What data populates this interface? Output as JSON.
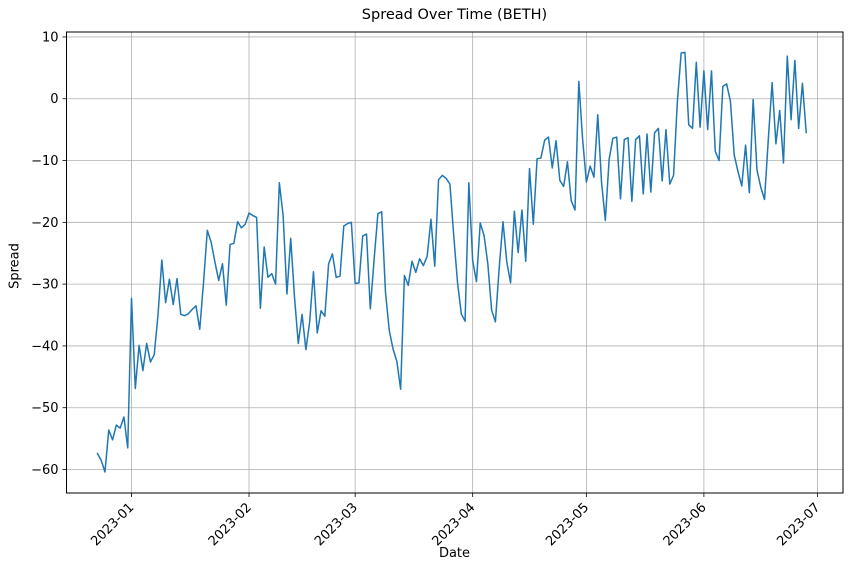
{
  "chart_data": {
    "type": "line",
    "title": "Spread Over Time (BETH)",
    "xlabel": "Date",
    "ylabel": "Spread",
    "series_name": "Spread",
    "line_color": "#1f77b4",
    "grid": true,
    "grid_color": "#b0b0b0",
    "legend": "none",
    "x_start_date": "2022-12-23",
    "x_frequency": "daily",
    "x_tick_labels": [
      "2023-01",
      "2023-02",
      "2023-03",
      "2023-04",
      "2023-05",
      "2023-06",
      "2023-07"
    ],
    "x_tick_indices": [
      9,
      40,
      68,
      99,
      129,
      160,
      190
    ],
    "x_range_indices": [
      -8.15,
      196.7
    ],
    "y_ticks": [
      10,
      0,
      -10,
      -20,
      -30,
      -40,
      -50,
      -60
    ],
    "y_tick_labels": [
      "10",
      "0",
      "−10",
      "−20",
      "−30",
      "−40",
      "−50",
      "−60"
    ],
    "ylim": [
      -63.8,
      10.8
    ],
    "values": [
      -57.4,
      -58.5,
      -60.4,
      -53.6,
      -55.2,
      -52.8,
      -53.3,
      -51.5,
      -56.5,
      -32.3,
      -46.9,
      -39.9,
      -44.0,
      -39.6,
      -42.6,
      -41.4,
      -34.9,
      -26.1,
      -33.0,
      -29.2,
      -33.3,
      -29.1,
      -34.9,
      -35.1,
      -34.8,
      -34.1,
      -33.5,
      -37.3,
      -29.7,
      -21.3,
      -23.2,
      -26.4,
      -29.4,
      -26.7,
      -33.4,
      -23.6,
      -23.4,
      -19.9,
      -20.9,
      -20.3,
      -18.5,
      -18.9,
      -19.2,
      -33.9,
      -24.0,
      -28.9,
      -28.3,
      -30.0,
      -13.6,
      -18.9,
      -31.6,
      -22.6,
      -32.1,
      -39.6,
      -34.9,
      -40.6,
      -36.1,
      -28.0,
      -37.9,
      -34.3,
      -35.2,
      -26.7,
      -25.1,
      -28.9,
      -28.7,
      -20.6,
      -20.2,
      -20.0,
      -29.9,
      -29.8,
      -22.2,
      -21.9,
      -34.0,
      -26.0,
      -18.6,
      -18.3,
      -31.3,
      -37.5,
      -40.5,
      -42.5,
      -47.0,
      -28.6,
      -30.2,
      -26.3,
      -28.1,
      -25.9,
      -27.0,
      -25.5,
      -19.5,
      -27.1,
      -13.1,
      -12.4,
      -12.9,
      -13.8,
      -22.1,
      -29.7,
      -34.8,
      -36.0,
      -13.6,
      -26.2,
      -29.6,
      -20.1,
      -22.1,
      -26.7,
      -34.2,
      -36.1,
      -27.4,
      -19.9,
      -26.4,
      -29.8,
      -18.2,
      -24.9,
      -18.0,
      -26.3,
      -11.3,
      -20.3,
      -9.7,
      -9.6,
      -6.7,
      -6.2,
      -11.2,
      -6.8,
      -13.2,
      -14.2,
      -10.2,
      -16.5,
      -18.0,
      2.8,
      -6.5,
      -13.5,
      -10.9,
      -12.7,
      -2.6,
      -13.5,
      -19.7,
      -9.8,
      -6.4,
      -6.2,
      -16.2,
      -6.6,
      -6.3,
      -16.6,
      -6.6,
      -6.0,
      -15.4,
      -5.7,
      -15.1,
      -5.5,
      -4.8,
      -13.3,
      -5.0,
      -13.8,
      -12.4,
      -0.5,
      7.4,
      7.5,
      -4.2,
      -4.8,
      5.9,
      -4.6,
      4.5,
      -5.0,
      4.5,
      -8.5,
      -10.0,
      2.0,
      2.4,
      -0.4,
      -9.1,
      -11.8,
      -14.1,
      -7.5,
      -15.2,
      -0.1,
      -11.5,
      -14.3,
      -16.3,
      -6.5,
      2.6,
      -7.3,
      -1.9,
      -10.4,
      6.9,
      -3.4,
      6.2,
      -4.8,
      2.5,
      -5.5
    ]
  }
}
